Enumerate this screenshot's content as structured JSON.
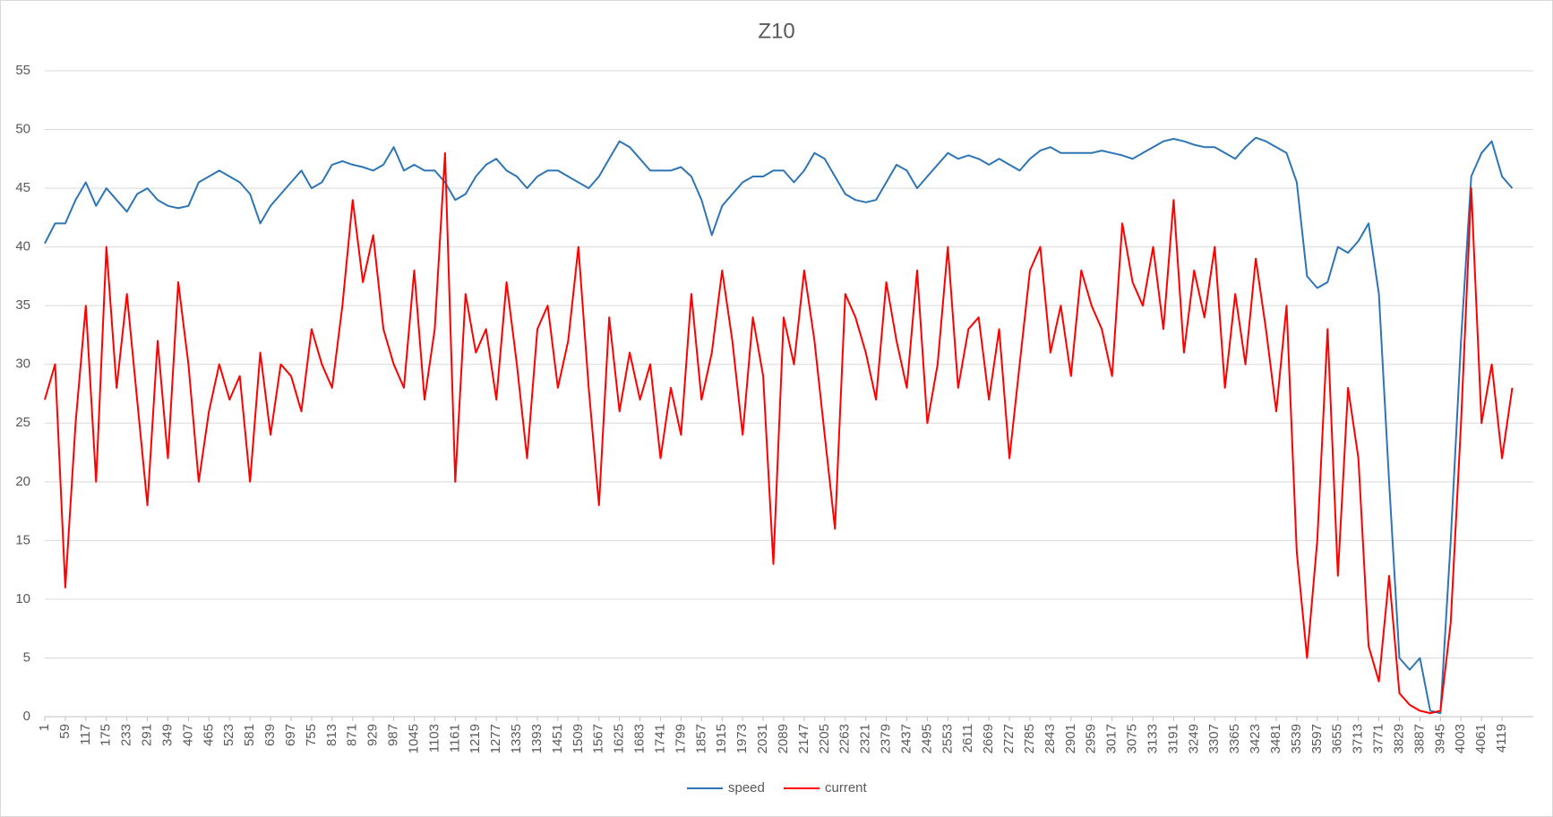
{
  "chart_data": {
    "type": "line",
    "title": "Z10",
    "categories": [
      1,
      null,
      59,
      null,
      117,
      null,
      175,
      null,
      233,
      null,
      291,
      null,
      349,
      null,
      407,
      null,
      465,
      null,
      523,
      null,
      581,
      null,
      639,
      null,
      697,
      null,
      755,
      null,
      813,
      null,
      871,
      null,
      929,
      null,
      987,
      null,
      1045,
      null,
      1103,
      null,
      1161,
      null,
      1219,
      null,
      1277,
      null,
      1335,
      null,
      1393,
      null,
      1451,
      null,
      1509,
      null,
      1567,
      null,
      1625,
      null,
      1683,
      null,
      1741,
      null,
      1799,
      null,
      1857,
      null,
      1915,
      null,
      1973,
      null,
      2031,
      null,
      2089,
      null,
      2147,
      null,
      2205,
      null,
      2263,
      null,
      2321,
      null,
      2379,
      null,
      2437,
      null,
      2495,
      null,
      2553,
      null,
      2611,
      null,
      2669,
      null,
      2727,
      null,
      2785,
      null,
      2843,
      null,
      2901,
      null,
      2959,
      null,
      3017,
      null,
      3075,
      null,
      3133,
      null,
      3191,
      null,
      3249,
      null,
      3307,
      null,
      3365,
      null,
      3423,
      null,
      3481,
      null,
      3539,
      null,
      3597,
      null,
      3655,
      null,
      3713,
      null,
      3771,
      null,
      3829,
      null,
      3887,
      null,
      3945,
      null,
      4003,
      null,
      4061,
      null,
      4119,
      null
    ],
    "series": [
      {
        "name": "speed",
        "color": "#2e75b6",
        "values": [
          40.3,
          42,
          42,
          44,
          45.5,
          43.5,
          45,
          44,
          43,
          44.5,
          45,
          44,
          43.5,
          43.3,
          43.5,
          45.5,
          46,
          46.5,
          46,
          45.5,
          44.5,
          42,
          43.5,
          44.5,
          45.5,
          46.5,
          45,
          45.5,
          47,
          47.3,
          47,
          46.8,
          46.5,
          47,
          48.5,
          46.5,
          47,
          46.5,
          46.5,
          45.5,
          44,
          44.5,
          46,
          47,
          47.5,
          46.5,
          46,
          45,
          46,
          46.5,
          46.5,
          46,
          45.5,
          45,
          46,
          47.5,
          49,
          48.5,
          47.5,
          46.5,
          46.5,
          46.5,
          46.8,
          46,
          44,
          41,
          43.5,
          44.5,
          45.5,
          46,
          46,
          46.5,
          46.5,
          45.5,
          46.5,
          48,
          47.5,
          46,
          44.5,
          44,
          43.8,
          44,
          45.5,
          47,
          46.5,
          45,
          46,
          47,
          48,
          47.5,
          47.8,
          47.5,
          47,
          47.5,
          47,
          46.5,
          47.5,
          48.2,
          48.5,
          48,
          48,
          48,
          48,
          48.2,
          48,
          47.8,
          47.5,
          48,
          48.5,
          49,
          49.2,
          49,
          48.7,
          48.5,
          48.5,
          48,
          47.5,
          48.5,
          49.3,
          49,
          48.5,
          48,
          45.5,
          37.5,
          36.5,
          37,
          40,
          39.5,
          40.5,
          42,
          36,
          20,
          5,
          4,
          5,
          0.5,
          0.3,
          15,
          32,
          46,
          48,
          49,
          46,
          45
        ]
      },
      {
        "name": "current",
        "color": "#ff0000",
        "values": [
          27,
          30,
          11,
          25,
          35,
          20,
          40,
          28,
          36,
          27,
          18,
          32,
          22,
          37,
          30,
          20,
          26,
          30,
          27,
          29,
          20,
          31,
          24,
          30,
          29,
          26,
          33,
          30,
          28,
          35,
          44,
          37,
          41,
          33,
          30,
          28,
          38,
          27,
          33,
          48,
          20,
          36,
          31,
          33,
          27,
          37,
          30,
          22,
          33,
          35,
          28,
          32,
          40,
          28,
          18,
          34,
          26,
          31,
          27,
          30,
          22,
          28,
          24,
          36,
          27,
          31,
          38,
          32,
          24,
          34,
          29,
          13,
          34,
          30,
          38,
          32,
          24,
          16,
          36,
          34,
          31,
          27,
          37,
          32,
          28,
          38,
          25,
          30,
          40,
          28,
          33,
          34,
          27,
          33,
          22,
          30,
          38,
          40,
          31,
          35,
          29,
          38,
          35,
          33,
          29,
          42,
          37,
          35,
          40,
          33,
          44,
          31,
          38,
          34,
          40,
          28,
          36,
          30,
          39,
          33,
          26,
          35,
          14,
          5,
          15,
          33,
          12,
          28,
          22,
          6,
          3,
          12,
          2,
          1,
          0.5,
          0.3,
          0.5,
          8,
          25,
          45,
          25,
          30,
          22,
          28
        ]
      }
    ],
    "ylim": [
      0,
      55
    ],
    "yticks": [
      0,
      5,
      10,
      15,
      20,
      25,
      30,
      35,
      40,
      45,
      50,
      55
    ],
    "grid": true,
    "legend": "bottom"
  }
}
